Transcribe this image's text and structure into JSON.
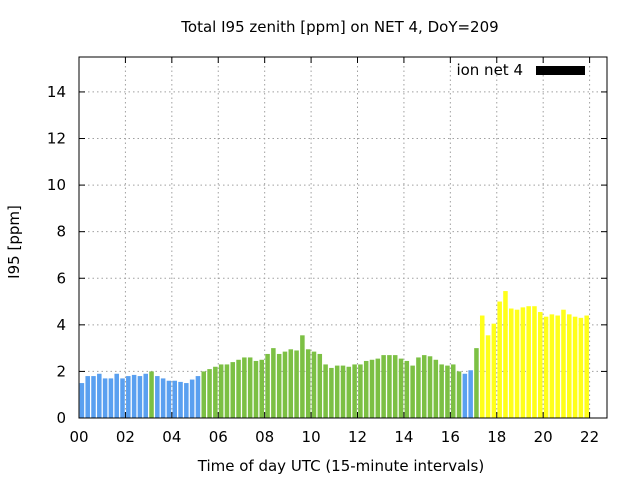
{
  "chart_data": {
    "type": "bar",
    "title": "Total I95 zenith [ppm] on NET 4, DoY=209",
    "xlabel": "Time of day UTC (15-minute intervals)",
    "ylabel": "I95 [ppm]",
    "xlim": [
      0,
      22.75
    ],
    "ylim": [
      0,
      15.5
    ],
    "x_ticks": [
      "00",
      "02",
      "04",
      "06",
      "08",
      "10",
      "12",
      "14",
      "16",
      "18",
      "20",
      "22"
    ],
    "y_ticks": [
      "0",
      "2",
      "4",
      "6",
      "8",
      "10",
      "12",
      "14"
    ],
    "grid": true,
    "legend": {
      "label": "ion net 4",
      "color": "#000000",
      "position": "top-right"
    },
    "bar_interval_hours": 0.25,
    "colors": {
      "blue": "#5aa0f0",
      "green": "#7cc044",
      "yellow": "#ffff1a"
    },
    "values": [
      1.5,
      1.8,
      1.8,
      1.9,
      1.7,
      1.7,
      1.9,
      1.7,
      1.8,
      1.85,
      1.8,
      1.9,
      2.0,
      1.8,
      1.7,
      1.6,
      1.6,
      1.55,
      1.5,
      1.65,
      1.8,
      2.0,
      2.1,
      2.2,
      2.3,
      2.3,
      2.4,
      2.5,
      2.6,
      2.6,
      2.45,
      2.5,
      2.75,
      3.0,
      2.75,
      2.85,
      2.95,
      2.9,
      3.55,
      2.95,
      2.85,
      2.75,
      2.3,
      2.15,
      2.25,
      2.25,
      2.2,
      2.3,
      2.3,
      2.45,
      2.5,
      2.55,
      2.7,
      2.7,
      2.7,
      2.55,
      2.45,
      2.25,
      2.6,
      2.7,
      2.65,
      2.5,
      2.3,
      2.25,
      2.3,
      2.0,
      1.9,
      2.05,
      3.0,
      4.4,
      3.55,
      4.05,
      5.0,
      5.45,
      4.7,
      4.65,
      4.75,
      4.8,
      4.8,
      4.55,
      4.35,
      4.45,
      4.4,
      4.65,
      4.45,
      4.35,
      4.3,
      4.4
    ],
    "bar_colors": [
      "blue",
      "blue",
      "blue",
      "blue",
      "blue",
      "blue",
      "blue",
      "blue",
      "blue",
      "blue",
      "blue",
      "blue",
      "green",
      "blue",
      "blue",
      "blue",
      "blue",
      "blue",
      "blue",
      "blue",
      "blue",
      "green",
      "green",
      "green",
      "green",
      "green",
      "green",
      "green",
      "green",
      "green",
      "green",
      "green",
      "green",
      "green",
      "green",
      "green",
      "green",
      "green",
      "green",
      "green",
      "green",
      "green",
      "green",
      "green",
      "green",
      "green",
      "green",
      "green",
      "green",
      "green",
      "green",
      "green",
      "green",
      "green",
      "green",
      "green",
      "green",
      "green",
      "green",
      "green",
      "green",
      "green",
      "green",
      "green",
      "green",
      "green",
      "blue",
      "blue",
      "green",
      "yellow",
      "yellow",
      "yellow",
      "yellow",
      "yellow",
      "yellow",
      "yellow",
      "yellow",
      "yellow",
      "yellow",
      "yellow",
      "yellow",
      "yellow",
      "yellow",
      "yellow",
      "yellow",
      "yellow",
      "yellow",
      "yellow"
    ]
  }
}
